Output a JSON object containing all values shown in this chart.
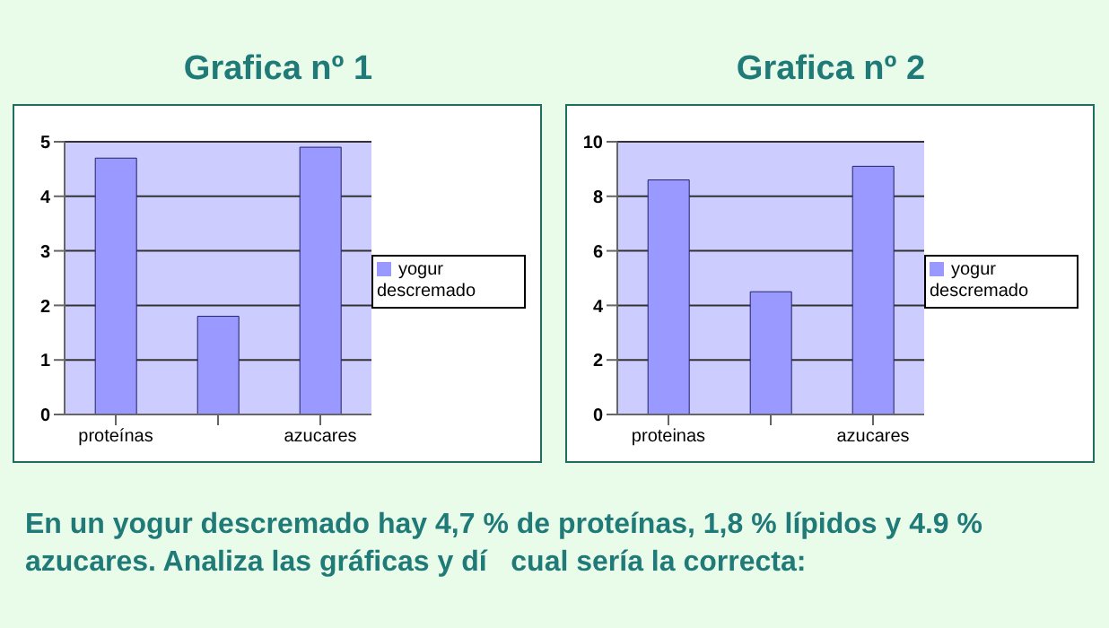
{
  "chart_data": [
    {
      "type": "bar",
      "title": "Grafica nº 1",
      "categories": [
        "proteínas",
        null,
        "azucares"
      ],
      "series": [
        {
          "name": "yogur descremado",
          "color": "#9999ff",
          "values": [
            4.7,
            1.8,
            4.9
          ]
        }
      ],
      "ylim": [
        0,
        5
      ],
      "yticks": [
        0,
        1,
        2,
        3,
        4,
        5
      ],
      "grid": "y",
      "legend": "right"
    },
    {
      "type": "bar",
      "title": "Grafica nº 2",
      "categories": [
        "proteinas",
        null,
        "azucares"
      ],
      "series": [
        {
          "name": "yogur descremado",
          "color": "#9999ff",
          "values": [
            8.6,
            4.5,
            9.1
          ]
        }
      ],
      "ylim": [
        0,
        10
      ],
      "yticks": [
        0,
        2,
        4,
        6,
        8,
        10
      ],
      "grid": "y",
      "legend": "right",
      "annotations": [
        "En un yogur descremado hay 4,7 % de proteínas, 1,8 % lípidos y 4.9 % azucares. Analiza las gráficas y dí   cual sería la correcta:"
      ]
    }
  ]
}
